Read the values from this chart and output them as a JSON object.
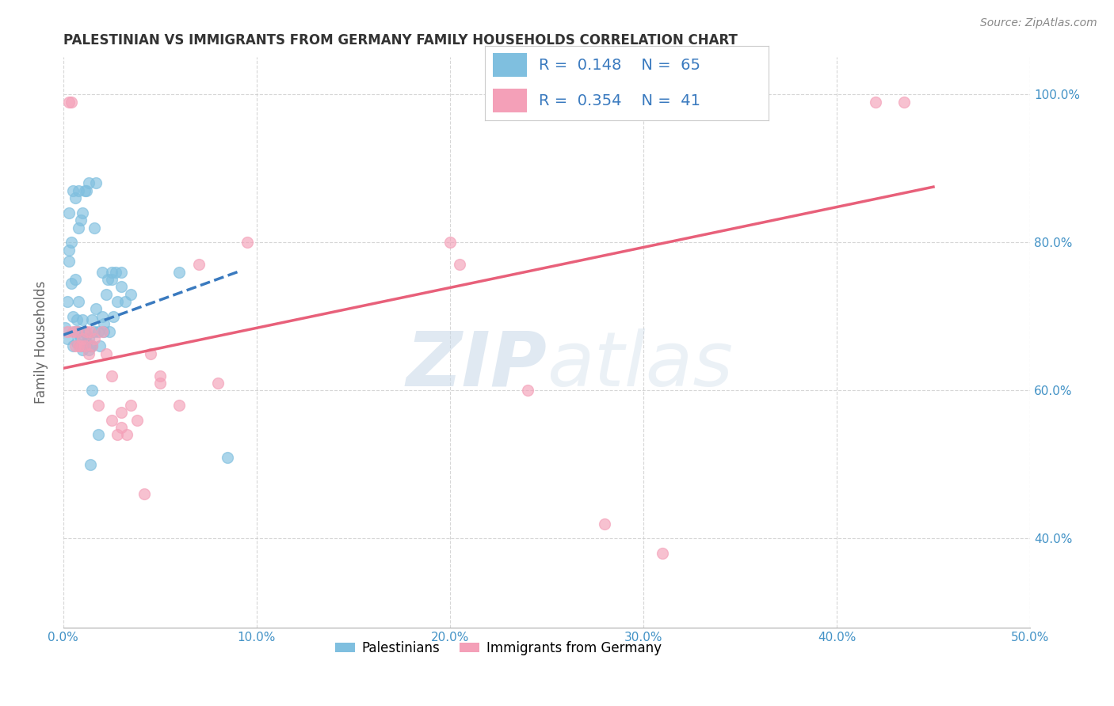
{
  "title": "PALESTINIAN VS IMMIGRANTS FROM GERMANY FAMILY HOUSEHOLDS CORRELATION CHART",
  "source": "Source: ZipAtlas.com",
  "ylabel_label": "Family Households",
  "xlim": [
    0.0,
    0.5
  ],
  "ylim": [
    0.28,
    1.05
  ],
  "legend_label1": "Palestinians",
  "legend_label2": "Immigrants from Germany",
  "R1": "0.148",
  "N1": "65",
  "R2": "0.354",
  "N2": "41",
  "blue_color": "#7fbfdf",
  "pink_color": "#f4a0b8",
  "blue_line_color": "#3a7abf",
  "pink_line_color": "#e8607a",
  "watermark_zip": "ZIP",
  "watermark_atlas": "atlas",
  "palestinians_x": [
    0.001,
    0.002,
    0.002,
    0.003,
    0.003,
    0.004,
    0.004,
    0.005,
    0.005,
    0.006,
    0.006,
    0.007,
    0.007,
    0.008,
    0.008,
    0.009,
    0.009,
    0.01,
    0.01,
    0.011,
    0.011,
    0.012,
    0.012,
    0.013,
    0.013,
    0.014,
    0.015,
    0.015,
    0.016,
    0.017,
    0.018,
    0.019,
    0.02,
    0.021,
    0.022,
    0.023,
    0.024,
    0.025,
    0.026,
    0.027,
    0.028,
    0.03,
    0.032,
    0.035,
    0.003,
    0.006,
    0.009,
    0.012,
    0.015,
    0.018,
    0.021,
    0.008,
    0.01,
    0.013,
    0.016,
    0.02,
    0.025,
    0.03,
    0.085,
    0.06,
    0.014,
    0.017,
    0.005,
    0.008,
    0.011
  ],
  "palestinians_y": [
    0.685,
    0.72,
    0.67,
    0.775,
    0.79,
    0.745,
    0.8,
    0.7,
    0.66,
    0.68,
    0.75,
    0.665,
    0.695,
    0.68,
    0.72,
    0.67,
    0.66,
    0.655,
    0.695,
    0.68,
    0.66,
    0.675,
    0.665,
    0.655,
    0.67,
    0.66,
    0.695,
    0.66,
    0.68,
    0.71,
    0.68,
    0.66,
    0.7,
    0.68,
    0.73,
    0.75,
    0.68,
    0.75,
    0.7,
    0.76,
    0.72,
    0.74,
    0.72,
    0.73,
    0.84,
    0.86,
    0.83,
    0.87,
    0.6,
    0.54,
    0.69,
    0.87,
    0.84,
    0.88,
    0.82,
    0.76,
    0.76,
    0.76,
    0.51,
    0.76,
    0.5,
    0.88,
    0.87,
    0.82,
    0.87
  ],
  "germany_x": [
    0.002,
    0.003,
    0.004,
    0.005,
    0.006,
    0.007,
    0.008,
    0.009,
    0.01,
    0.011,
    0.012,
    0.013,
    0.014,
    0.015,
    0.016,
    0.018,
    0.02,
    0.022,
    0.025,
    0.028,
    0.03,
    0.033,
    0.035,
    0.038,
    0.042,
    0.045,
    0.05,
    0.06,
    0.07,
    0.08,
    0.05,
    0.025,
    0.03,
    0.095,
    0.2,
    0.205,
    0.24,
    0.28,
    0.31,
    0.42,
    0.435
  ],
  "germany_y": [
    0.68,
    0.99,
    0.99,
    0.68,
    0.66,
    0.68,
    0.66,
    0.66,
    0.67,
    0.66,
    0.68,
    0.65,
    0.68,
    0.66,
    0.67,
    0.58,
    0.68,
    0.65,
    0.56,
    0.54,
    0.57,
    0.54,
    0.58,
    0.56,
    0.46,
    0.65,
    0.61,
    0.58,
    0.77,
    0.61,
    0.62,
    0.62,
    0.55,
    0.8,
    0.8,
    0.77,
    0.6,
    0.42,
    0.38,
    0.99,
    0.99
  ],
  "pal_line_x0": 0.0,
  "pal_line_x1": 0.09,
  "pal_line_y0": 0.675,
  "pal_line_y1": 0.76,
  "ger_line_x0": 0.0,
  "ger_line_x1": 0.45,
  "ger_line_y0": 0.63,
  "ger_line_y1": 0.875
}
